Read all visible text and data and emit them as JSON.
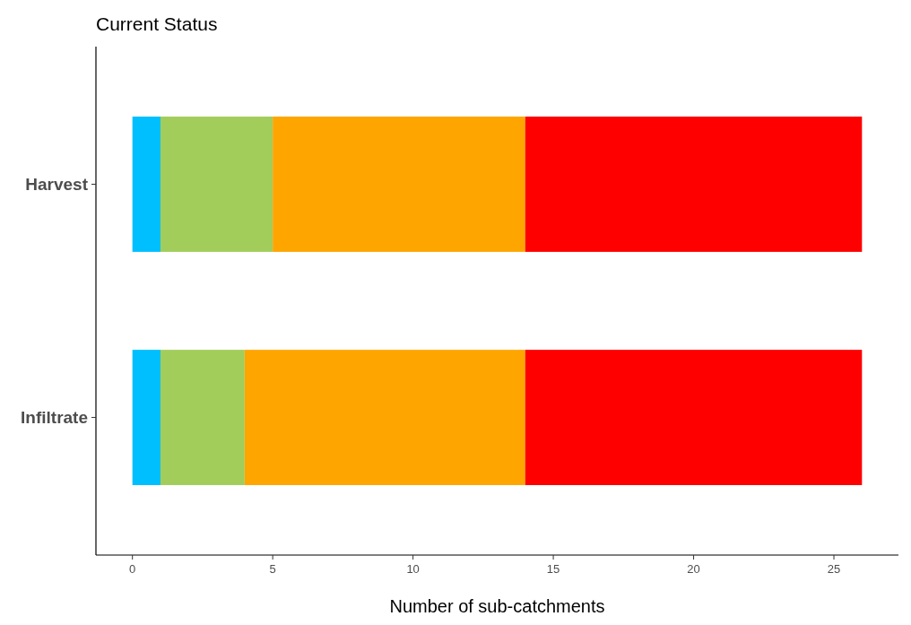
{
  "chart_data": {
    "type": "bar",
    "title": "Current Status",
    "xlabel": "Number of sub-catchments",
    "orientation": "horizontal",
    "stacked": true,
    "categories": [
      "Harvest",
      "Infiltrate"
    ],
    "series": [
      {
        "color": "#00bfff",
        "values": [
          1,
          1
        ]
      },
      {
        "color": "#a2cd5a",
        "values": [
          4,
          3
        ]
      },
      {
        "color": "#ffa500",
        "values": [
          9,
          10
        ]
      },
      {
        "color": "#ff0000",
        "values": [
          12,
          12
        ]
      }
    ],
    "xlim": [
      -1.3,
      27.3
    ],
    "xticks": [
      0,
      5,
      10,
      15,
      20,
      25
    ],
    "grid": false
  }
}
